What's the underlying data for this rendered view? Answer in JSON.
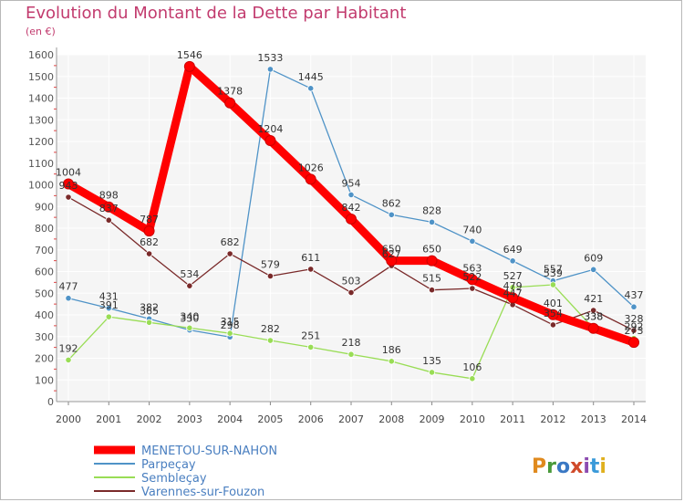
{
  "title": "Evolution du Montant de la Dette par Habitant",
  "subtitle": "(en €)",
  "logo_text": "Proxiti",
  "chart_data": {
    "type": "line",
    "title": "Evolution du Montant de la Dette par Habitant",
    "ylabel": "(en €)",
    "xlabel": "",
    "x": [
      "2000",
      "2001",
      "2002",
      "2003",
      "2004",
      "2005",
      "2006",
      "2007",
      "2008",
      "2009",
      "2010",
      "2011",
      "2012",
      "2013",
      "2014"
    ],
    "ylim": [
      0,
      1600
    ],
    "yticks": [
      0,
      100,
      200,
      300,
      400,
      500,
      600,
      700,
      800,
      900,
      1000,
      1100,
      1200,
      1300,
      1400,
      1500,
      1600
    ],
    "grid": true,
    "legend_position": "bottom-left",
    "series": [
      {
        "name": "MENETOU-SUR-NAHON",
        "color": "#ff0000",
        "values": [
          1004,
          898,
          787,
          1546,
          1378,
          1204,
          1026,
          842,
          650,
          650,
          563,
          479,
          401,
          338,
          273
        ]
      },
      {
        "name": "Parpeçay",
        "color": "#4f93c7",
        "values": [
          477,
          431,
          382,
          330,
          298,
          1533,
          1445,
          954,
          862,
          828,
          740,
          649,
          557,
          609,
          437
        ]
      },
      {
        "name": "Sembleçay",
        "color": "#99dd55",
        "values": [
          192,
          391,
          365,
          340,
          315,
          282,
          251,
          218,
          186,
          135,
          106,
          527,
          539,
          338,
          292
        ]
      },
      {
        "name": "Varennes-sur-Fouzon",
        "color": "#7a2a2a",
        "values": [
          943,
          837,
          682,
          534,
          682,
          579,
          611,
          503,
          627,
          515,
          522,
          447,
          354,
          421,
          328
        ]
      }
    ],
    "data_labels": [
      [
        "1004",
        "898",
        "787",
        "1546",
        "1378",
        "1204",
        "1026",
        "842",
        "650",
        "650",
        "563",
        "479",
        "401",
        "338",
        "273"
      ],
      [
        "477",
        "431",
        "382",
        "330",
        "298",
        "1533",
        "1445",
        "954",
        "862",
        "828",
        "740",
        "649",
        "557",
        "609",
        "437"
      ],
      [
        "192",
        "391",
        "365",
        "340",
        "315",
        "282",
        "251",
        "218",
        "186",
        "135",
        "106",
        "527",
        "539",
        "338",
        "292"
      ],
      [
        "943",
        "837",
        "682",
        "534",
        "682",
        "579",
        "611",
        "503",
        "627",
        "515",
        "522",
        "447",
        "354",
        "421",
        "328"
      ]
    ]
  }
}
